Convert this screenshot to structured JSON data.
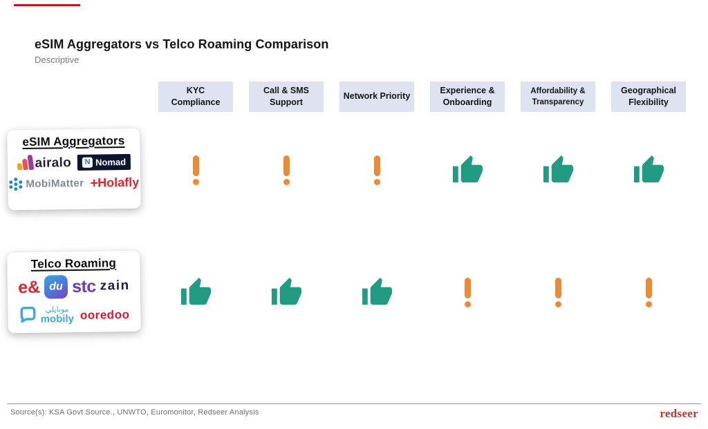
{
  "header": {
    "title": "eSIM Aggregators vs Telco Roaming Comparison",
    "subtitle": "Descriptive"
  },
  "criteria": [
    "KYC Compliance",
    "Call & SMS Support",
    "Network Priority",
    "Experience & Onboarding",
    "Affordability & Transparency",
    "Geographical Flexibility"
  ],
  "groups": [
    {
      "label": "eSIM Aggregators",
      "brands": {
        "airalo": "airalo",
        "nomad_mark": "N",
        "nomad": "Nomad",
        "mobimatter": "MobiMatter",
        "holafly_mark": "+",
        "holafly": "Holafly"
      },
      "ratings": [
        "caution",
        "caution",
        "caution",
        "positive",
        "positive",
        "positive"
      ]
    },
    {
      "label": "Telco Roaming",
      "brands": {
        "etisalat": "e&",
        "du": "du",
        "stc": "stc",
        "zain": "zain",
        "mobily_arabic": "موبايلي",
        "mobily": "mobily",
        "ooredoo": "ooredoo"
      },
      "ratings": [
        "positive",
        "positive",
        "positive",
        "caution",
        "caution",
        "caution"
      ]
    }
  ],
  "colors": {
    "positive": "#219B82",
    "caution": "#EC8B33",
    "accent": "#C51718",
    "header_bg": "#DDE3F0",
    "airalo_text": "#26203B",
    "nomad_bg": "#0D1430",
    "mobimatter": "#848A92",
    "mobimatter_icon": "#1E88D8",
    "holafly": "#E0232E",
    "etisalat": "#E0252B",
    "stc": "#6D3AC2",
    "zain": "#221C3E",
    "mobily": "#3FA9E0",
    "ooredoo": "#E2152D",
    "redseer": "#C5332B"
  },
  "footer": {
    "source": "Source(s): KSA Govt Source., UNWTO, Euromonitor, Redseer Analysis",
    "brand": "redseer"
  }
}
